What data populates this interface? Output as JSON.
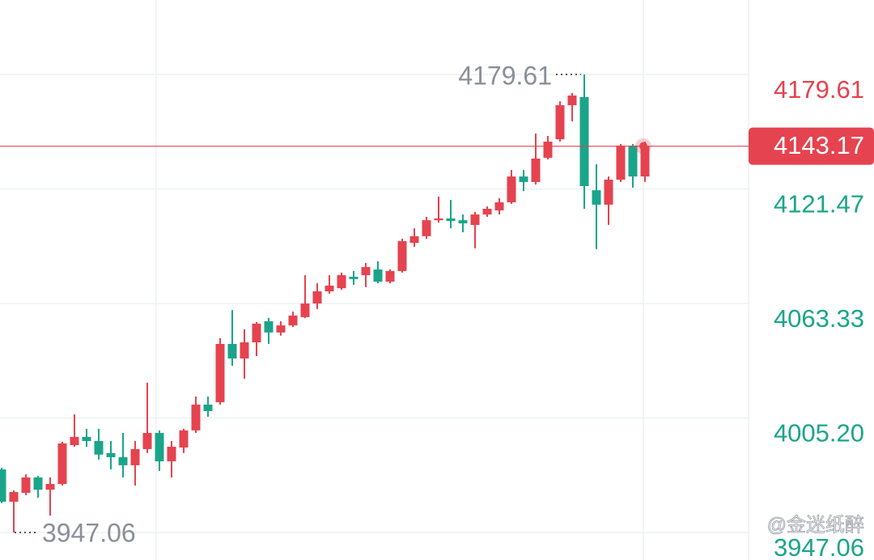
{
  "chart_data": {
    "type": "candlestick",
    "up_color": "#e5434f",
    "down_color": "#1aa58a",
    "open": [
      3979.1,
      3962.7,
      3967.2,
      3975.0,
      3968.8,
      3971.7,
      3991.4,
      3995.6,
      3993.5,
      3987.4,
      3985.3,
      3981.2,
      3989.4,
      3997.6,
      3983.2,
      3990.2,
      3998.9,
      4012.0,
      4013.2,
      4042.8,
      4035.4,
      4043.6,
      4054.3,
      4048.6,
      4052.2,
      4056.4,
      4063.3,
      4069.5,
      4071.1,
      4076.9,
      4077.7,
      4080.6,
      4074.4,
      4079.8,
      4094.1,
      4097.5,
      4105.6,
      4106.5,
      4105.6,
      4103.2,
      4108.5,
      4110.6,
      4114.7,
      4127.8,
      4125.0,
      4137.3,
      4146.7,
      4164.0,
      4168.1,
      4120.8,
      4113.5,
      4126.2,
      4143.5,
      4127.8
    ],
    "high": [
      3979.9,
      3968.4,
      3976.6,
      3975.8,
      3975.0,
      3993.1,
      4007.0,
      3999.7,
      3999.7,
      3993.5,
      3997.6,
      3993.5,
      4023.1,
      3998.9,
      3993.5,
      3999.7,
      4016.1,
      4016.1,
      4045.7,
      4060.0,
      4050.2,
      4053.9,
      4056.0,
      4054.3,
      4059.2,
      4077.7,
      4073.6,
      4077.7,
      4079.0,
      4079.8,
      4083.9,
      4084.7,
      4080.6,
      4096.2,
      4101.5,
      4107.3,
      4117.6,
      4115.9,
      4108.5,
      4109.8,
      4112.6,
      4116.8,
      4131.1,
      4131.1,
      4149.6,
      4148.4,
      4166.0,
      4170.2,
      4179.61,
      4134.0,
      4127.8,
      4144.3,
      4144.3,
      4145.5
    ],
    "low": [
      3962.0,
      3947.06,
      3966.0,
      3964.7,
      3955.6,
      3970.9,
      3990.6,
      3990.6,
      3984.1,
      3979.1,
      3975.0,
      3970.9,
      3987.4,
      3978.3,
      3975.0,
      3987.4,
      3997.6,
      4005.8,
      4012.0,
      4031.7,
      4025.1,
      4036.6,
      4042.8,
      4047.0,
      4051.4,
      4055.9,
      4060.5,
      4068.3,
      4070.3,
      4072.8,
      4071.6,
      4073.6,
      4073.6,
      4079.0,
      4092.1,
      4096.2,
      4104.4,
      4101.5,
      4099.5,
      4091.3,
      4107.3,
      4108.5,
      4113.9,
      4120.4,
      4123.7,
      4136.5,
      4145.5,
      4155.8,
      4111.4,
      4090.9,
      4103.2,
      4125.0,
      4122.1,
      4125.0
    ],
    "close": [
      3962.7,
      3967.6,
      3975.0,
      3968.8,
      3971.7,
      3992.3,
      3995.6,
      3993.5,
      3986.6,
      3985.3,
      3981.2,
      3989.4,
      3997.6,
      3983.2,
      3990.6,
      3998.9,
      4012.0,
      4008.7,
      4042.8,
      4035.4,
      4043.6,
      4053.1,
      4048.6,
      4052.2,
      4057.2,
      4063.3,
      4069.5,
      4072.4,
      4077.7,
      4075.7,
      4081.8,
      4074.4,
      4079.8,
      4095.0,
      4097.5,
      4105.6,
      4106.5,
      4105.2,
      4104.0,
      4108.5,
      4111.4,
      4114.7,
      4127.8,
      4125.0,
      4136.9,
      4145.5,
      4164.0,
      4168.9,
      4122.9,
      4113.5,
      4126.2,
      4143.5,
      4127.8,
      4143.17
    ],
    "ylim": [
      3933.1,
      4217.4
    ],
    "yticks": [
      4179.61,
      4121.47,
      4063.33,
      {
        "value": 4005.2,
        "label": "4005.20"
      },
      3947.06
    ],
    "grid": true,
    "current_price": 4143.17,
    "high_annotation": 4179.61,
    "low_annotation": 3947.06,
    "watermark": "@金迷纸醉"
  }
}
